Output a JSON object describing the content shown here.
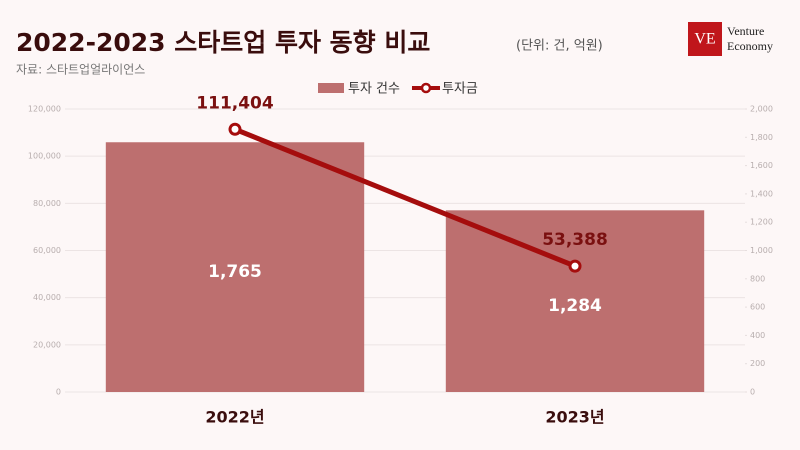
{
  "chart_data": {
    "type": "bar",
    "title": "2022-2023 스타트업 투자 동향 비교",
    "subtitle": "(단위: 건, 억원)",
    "source": "자료: 스타트업얼라이언스",
    "categories": [
      "2022년",
      "2023년"
    ],
    "series": [
      {
        "name": "투자 건수",
        "type": "bar",
        "axis": "y2",
        "color": "#bd6f6f",
        "values": [
          1765,
          1284
        ],
        "value_labels": [
          "1,765",
          "1,284"
        ]
      },
      {
        "name": "투자금",
        "type": "line",
        "axis": "y",
        "color": "#a50d0d",
        "values": [
          111404,
          53388
        ],
        "value_labels": [
          "111,404",
          "53,388"
        ]
      }
    ],
    "ylim": [
      0,
      120000
    ],
    "yticks": [
      0,
      {
        "value": 20000,
        "label": "20,000"
      },
      {
        "value": 40000,
        "label": "40,000"
      },
      {
        "value": 60000,
        "label": "60,000"
      },
      {
        "value": 80000,
        "label": "80,000"
      },
      {
        "value": 100000,
        "label": "100,000"
      },
      {
        "value": 120000,
        "label": "120,000"
      }
    ],
    "y2lim": [
      0,
      2000
    ],
    "y2ticks": [
      0,
      200,
      400,
      600,
      800,
      {
        "value": 1000,
        "label": "1,000"
      },
      {
        "value": 1200,
        "label": "1,200"
      },
      {
        "value": 1400,
        "label": "1,400"
      },
      {
        "value": 1600,
        "label": "1,600"
      },
      {
        "value": 1800,
        "label": "1,800"
      },
      {
        "value": 2000,
        "label": "2,000"
      }
    ],
    "grid": true,
    "legend": "top"
  },
  "logo": {
    "mark": "VE",
    "lines": [
      "Venture",
      "Economy"
    ]
  }
}
